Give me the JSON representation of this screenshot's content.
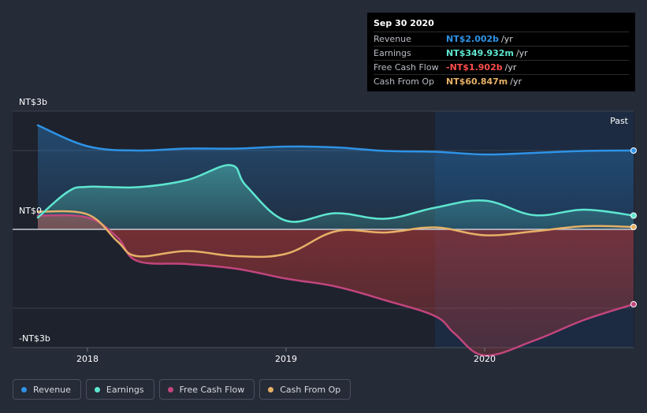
{
  "chart_data": {
    "type": "area",
    "y_unit_labels": {
      "top": "NT$3b",
      "zero": "NT$0",
      "bottom": "-NT$3b"
    },
    "ylim": [
      -3,
      3
    ],
    "xlim": [
      2017.75,
      2020.75
    ],
    "x_ticks": [
      {
        "value": 2018,
        "label": "2018"
      },
      {
        "value": 2019,
        "label": "2019"
      },
      {
        "value": 2020,
        "label": "2020"
      }
    ],
    "past_label": "Past",
    "past_region_start": 2019.75,
    "series": [
      {
        "name": "Revenue",
        "color": "#2e93e6",
        "x": [
          2017.75,
          2018.0,
          2018.25,
          2018.5,
          2018.75,
          2019.0,
          2019.25,
          2019.5,
          2019.75,
          2020.0,
          2020.25,
          2020.5,
          2020.75
        ],
        "values": [
          2.64,
          2.11,
          2.0,
          2.05,
          2.05,
          2.1,
          2.08,
          1.99,
          1.97,
          1.9,
          1.94,
          1.99,
          2.0
        ]
      },
      {
        "name": "Earnings",
        "color": "#5ee6d0",
        "x": [
          2017.75,
          2017.9,
          2018.0,
          2018.25,
          2018.5,
          2018.72,
          2018.8,
          2019.0,
          2019.25,
          2019.5,
          2019.75,
          2020.0,
          2020.25,
          2020.5,
          2020.75
        ],
        "values": [
          0.3,
          0.95,
          1.08,
          1.07,
          1.25,
          1.63,
          1.1,
          0.22,
          0.41,
          0.27,
          0.55,
          0.73,
          0.36,
          0.5,
          0.35
        ]
      },
      {
        "name": "Free Cash Flow",
        "color": "#c2457d",
        "x": [
          2017.75,
          2018.0,
          2018.15,
          2018.25,
          2018.5,
          2018.75,
          2019.0,
          2019.25,
          2019.5,
          2019.75,
          2019.85,
          2020.0,
          2020.25,
          2020.5,
          2020.75
        ],
        "values": [
          0.35,
          0.3,
          -0.2,
          -0.8,
          -0.88,
          -1.0,
          -1.25,
          -1.45,
          -1.8,
          -2.2,
          -2.65,
          -3.2,
          -2.82,
          -2.3,
          -1.9
        ]
      },
      {
        "name": "Cash From Op",
        "color": "#e6b066",
        "x": [
          2017.75,
          2018.0,
          2018.15,
          2018.25,
          2018.5,
          2018.75,
          2019.0,
          2019.25,
          2019.5,
          2019.75,
          2020.0,
          2020.25,
          2020.5,
          2020.75
        ],
        "values": [
          0.45,
          0.38,
          -0.3,
          -0.68,
          -0.55,
          -0.68,
          -0.62,
          -0.05,
          -0.08,
          0.05,
          -0.15,
          -0.05,
          0.08,
          0.06
        ]
      }
    ]
  },
  "tooltip": {
    "date": "Sep 30 2020",
    "rows": [
      {
        "label": "Revenue",
        "value": "NT$2.002b",
        "unit": "/yr",
        "color": "#2e93e6"
      },
      {
        "label": "Earnings",
        "value": "NT$349.932m",
        "unit": "/yr",
        "color": "#5ee6d0"
      },
      {
        "label": "Free Cash Flow",
        "value": "-NT$1.902b",
        "unit": "/yr",
        "color": "#ff4d4d"
      },
      {
        "label": "Cash From Op",
        "value": "NT$60.847m",
        "unit": "/yr",
        "color": "#e6b066"
      }
    ]
  },
  "legend": [
    {
      "label": "Revenue",
      "color": "#2e93e6"
    },
    {
      "label": "Earnings",
      "color": "#5ee6d0"
    },
    {
      "label": "Free Cash Flow",
      "color": "#c2457d"
    },
    {
      "label": "Cash From Op",
      "color": "#e6b066"
    }
  ]
}
